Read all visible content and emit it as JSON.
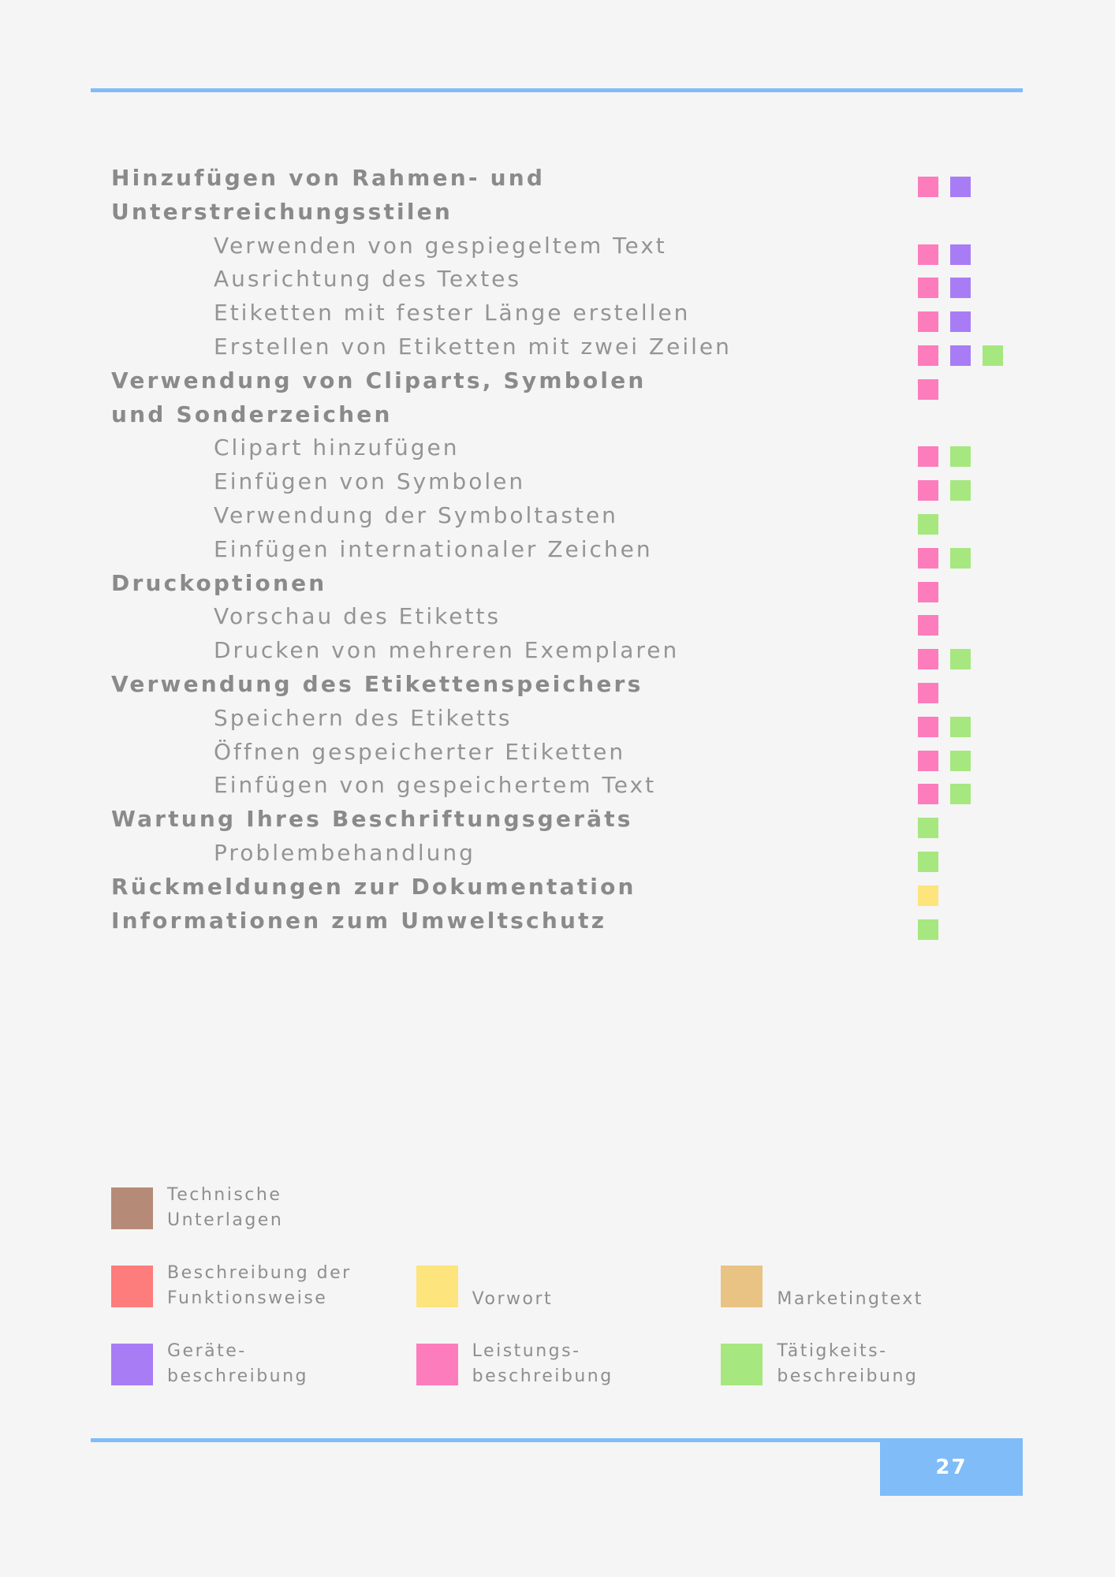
{
  "colors": {
    "rule": "#7fbcf8",
    "technische_unterlagen": "#b58b78",
    "funktionsweise": "#fd7c7c",
    "vorwort": "#fde47c",
    "marketingtext": "#e8c383",
    "geraetebeschreibung": "#a87cf5",
    "leistungsbeschreibung": "#fc7cbc",
    "taetigkeitsbeschreibung": "#a6e87f"
  },
  "toc": [
    {
      "label": "Hinzufügen von Rahmen- und Unterstreichungsstilen",
      "level": 1,
      "markers": [
        "leistungsbeschreibung",
        "geraetebeschreibung"
      ]
    },
    {
      "label": "Verwenden von gespiegeltem Text",
      "level": 2,
      "markers": [
        "leistungsbeschreibung",
        "geraetebeschreibung"
      ]
    },
    {
      "label": "Ausrichtung des Textes",
      "level": 2,
      "markers": [
        "leistungsbeschreibung",
        "geraetebeschreibung"
      ]
    },
    {
      "label": "Etiketten mit fester Länge erstellen",
      "level": 2,
      "markers": [
        "leistungsbeschreibung",
        "geraetebeschreibung"
      ]
    },
    {
      "label": "Erstellen von Etiketten mit zwei Zeilen",
      "level": 2,
      "markers": [
        "leistungsbeschreibung",
        "geraetebeschreibung",
        "taetigkeitsbeschreibung"
      ]
    },
    {
      "label": "Verwendung von Cliparts, Symbolen und Sonderzeichen",
      "level": 1,
      "markers": [
        "leistungsbeschreibung"
      ]
    },
    {
      "label": "Clipart hinzufügen",
      "level": 2,
      "markers": [
        "leistungsbeschreibung",
        "taetigkeitsbeschreibung"
      ]
    },
    {
      "label": "Einfügen von Symbolen",
      "level": 2,
      "markers": [
        "leistungsbeschreibung",
        "taetigkeitsbeschreibung"
      ]
    },
    {
      "label": "Verwendung der Symboltasten",
      "level": 2,
      "markers": [
        "taetigkeitsbeschreibung"
      ]
    },
    {
      "label": "Einfügen internationaler Zeichen",
      "level": 2,
      "markers": [
        "leistungsbeschreibung",
        "taetigkeitsbeschreibung"
      ]
    },
    {
      "label": "Druckoptionen",
      "level": 1,
      "markers": [
        "leistungsbeschreibung"
      ]
    },
    {
      "label": "Vorschau des Etiketts",
      "level": 2,
      "markers": [
        "leistungsbeschreibung"
      ]
    },
    {
      "label": "Drucken von mehreren Exemplaren",
      "level": 2,
      "markers": [
        "leistungsbeschreibung",
        "taetigkeitsbeschreibung"
      ]
    },
    {
      "label": "Verwendung des Etikettenspeichers",
      "level": 1,
      "markers": [
        "leistungsbeschreibung"
      ]
    },
    {
      "label": "Speichern des Etiketts",
      "level": 2,
      "markers": [
        "leistungsbeschreibung",
        "taetigkeitsbeschreibung"
      ]
    },
    {
      "label": "Öffnen gespeicherter Etiketten",
      "level": 2,
      "markers": [
        "leistungsbeschreibung",
        "taetigkeitsbeschreibung"
      ]
    },
    {
      "label": "Einfügen von gespeichertem Text",
      "level": 2,
      "markers": [
        "leistungsbeschreibung",
        "taetigkeitsbeschreibung"
      ]
    },
    {
      "label": "Wartung Ihres Beschriftungsgeräts",
      "level": 1,
      "markers": [
        "taetigkeitsbeschreibung"
      ]
    },
    {
      "label": "Problembehandlung",
      "level": 2,
      "markers": [
        "taetigkeitsbeschreibung"
      ]
    },
    {
      "label": "Rückmeldungen zur Dokumentation",
      "level": 1,
      "markers": [
        "vorwort"
      ]
    },
    {
      "label": "Informationen zum Umweltschutz",
      "level": 1,
      "markers": [
        "taetigkeitsbeschreibung"
      ]
    }
  ],
  "legend": {
    "rows": [
      [
        {
          "key": "technische_unterlagen",
          "label": "Technische\nUnterlagen"
        }
      ],
      [
        {
          "key": "funktionsweise",
          "label": "Beschreibung der\nFunktionsweise"
        },
        {
          "key": "vorwort",
          "label": "Vorwort"
        },
        {
          "key": "marketingtext",
          "label": "Marketingtext"
        }
      ],
      [
        {
          "key": "geraetebeschreibung",
          "label": "Geräte-\nbeschreibung"
        },
        {
          "key": "leistungsbeschreibung",
          "label": "Leistungs-\nbeschreibung"
        },
        {
          "key": "taetigkeitsbeschreibung",
          "label": "Tätigkeits-\nbeschreibung"
        }
      ]
    ]
  },
  "page_number": "27"
}
